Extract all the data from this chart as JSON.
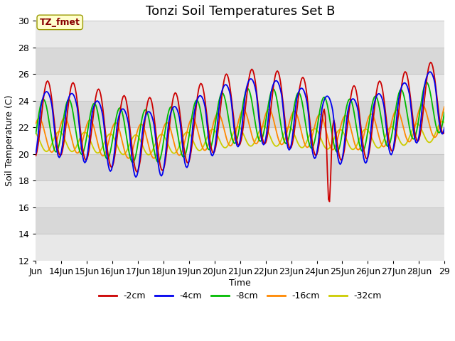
{
  "title": "Tonzi Soil Temperatures Set B",
  "xlabel": "Time",
  "ylabel": "Soil Temperature (C)",
  "xlim_days": [
    13.0,
    29.0
  ],
  "ylim": [
    12,
    30
  ],
  "yticks": [
    12,
    14,
    16,
    18,
    20,
    22,
    24,
    26,
    28,
    30
  ],
  "xtick_days": [
    13,
    14,
    15,
    16,
    17,
    18,
    19,
    20,
    21,
    22,
    23,
    24,
    25,
    26,
    27,
    28,
    29
  ],
  "xtick_labels": [
    "Jun",
    "14Jun",
    "15Jun",
    "16Jun",
    "17Jun",
    "18Jun",
    "19Jun",
    "20Jun",
    "21Jun",
    "22Jun",
    "23Jun",
    "24Jun",
    "25Jun",
    "26Jun",
    "27Jun",
    "28Jun",
    "29"
  ],
  "series_colors": [
    "#cc0000",
    "#0000ee",
    "#00bb00",
    "#ff8800",
    "#cccc00"
  ],
  "series_labels": [
    "-2cm",
    "-4cm",
    "-8cm",
    "-16cm",
    "-32cm"
  ],
  "annotation_text": "TZ_fmet",
  "annotation_box_color": "#ffffcc",
  "annotation_text_color": "#880000",
  "band_color_light": "#d8d8d8",
  "band_color_white": "#e8e8e8",
  "grid_line_color": "#c0c0c0",
  "title_fontsize": 13,
  "axis_fontsize": 9,
  "tick_fontsize": 9,
  "figsize": [
    6.4,
    4.8
  ],
  "dpi": 100
}
